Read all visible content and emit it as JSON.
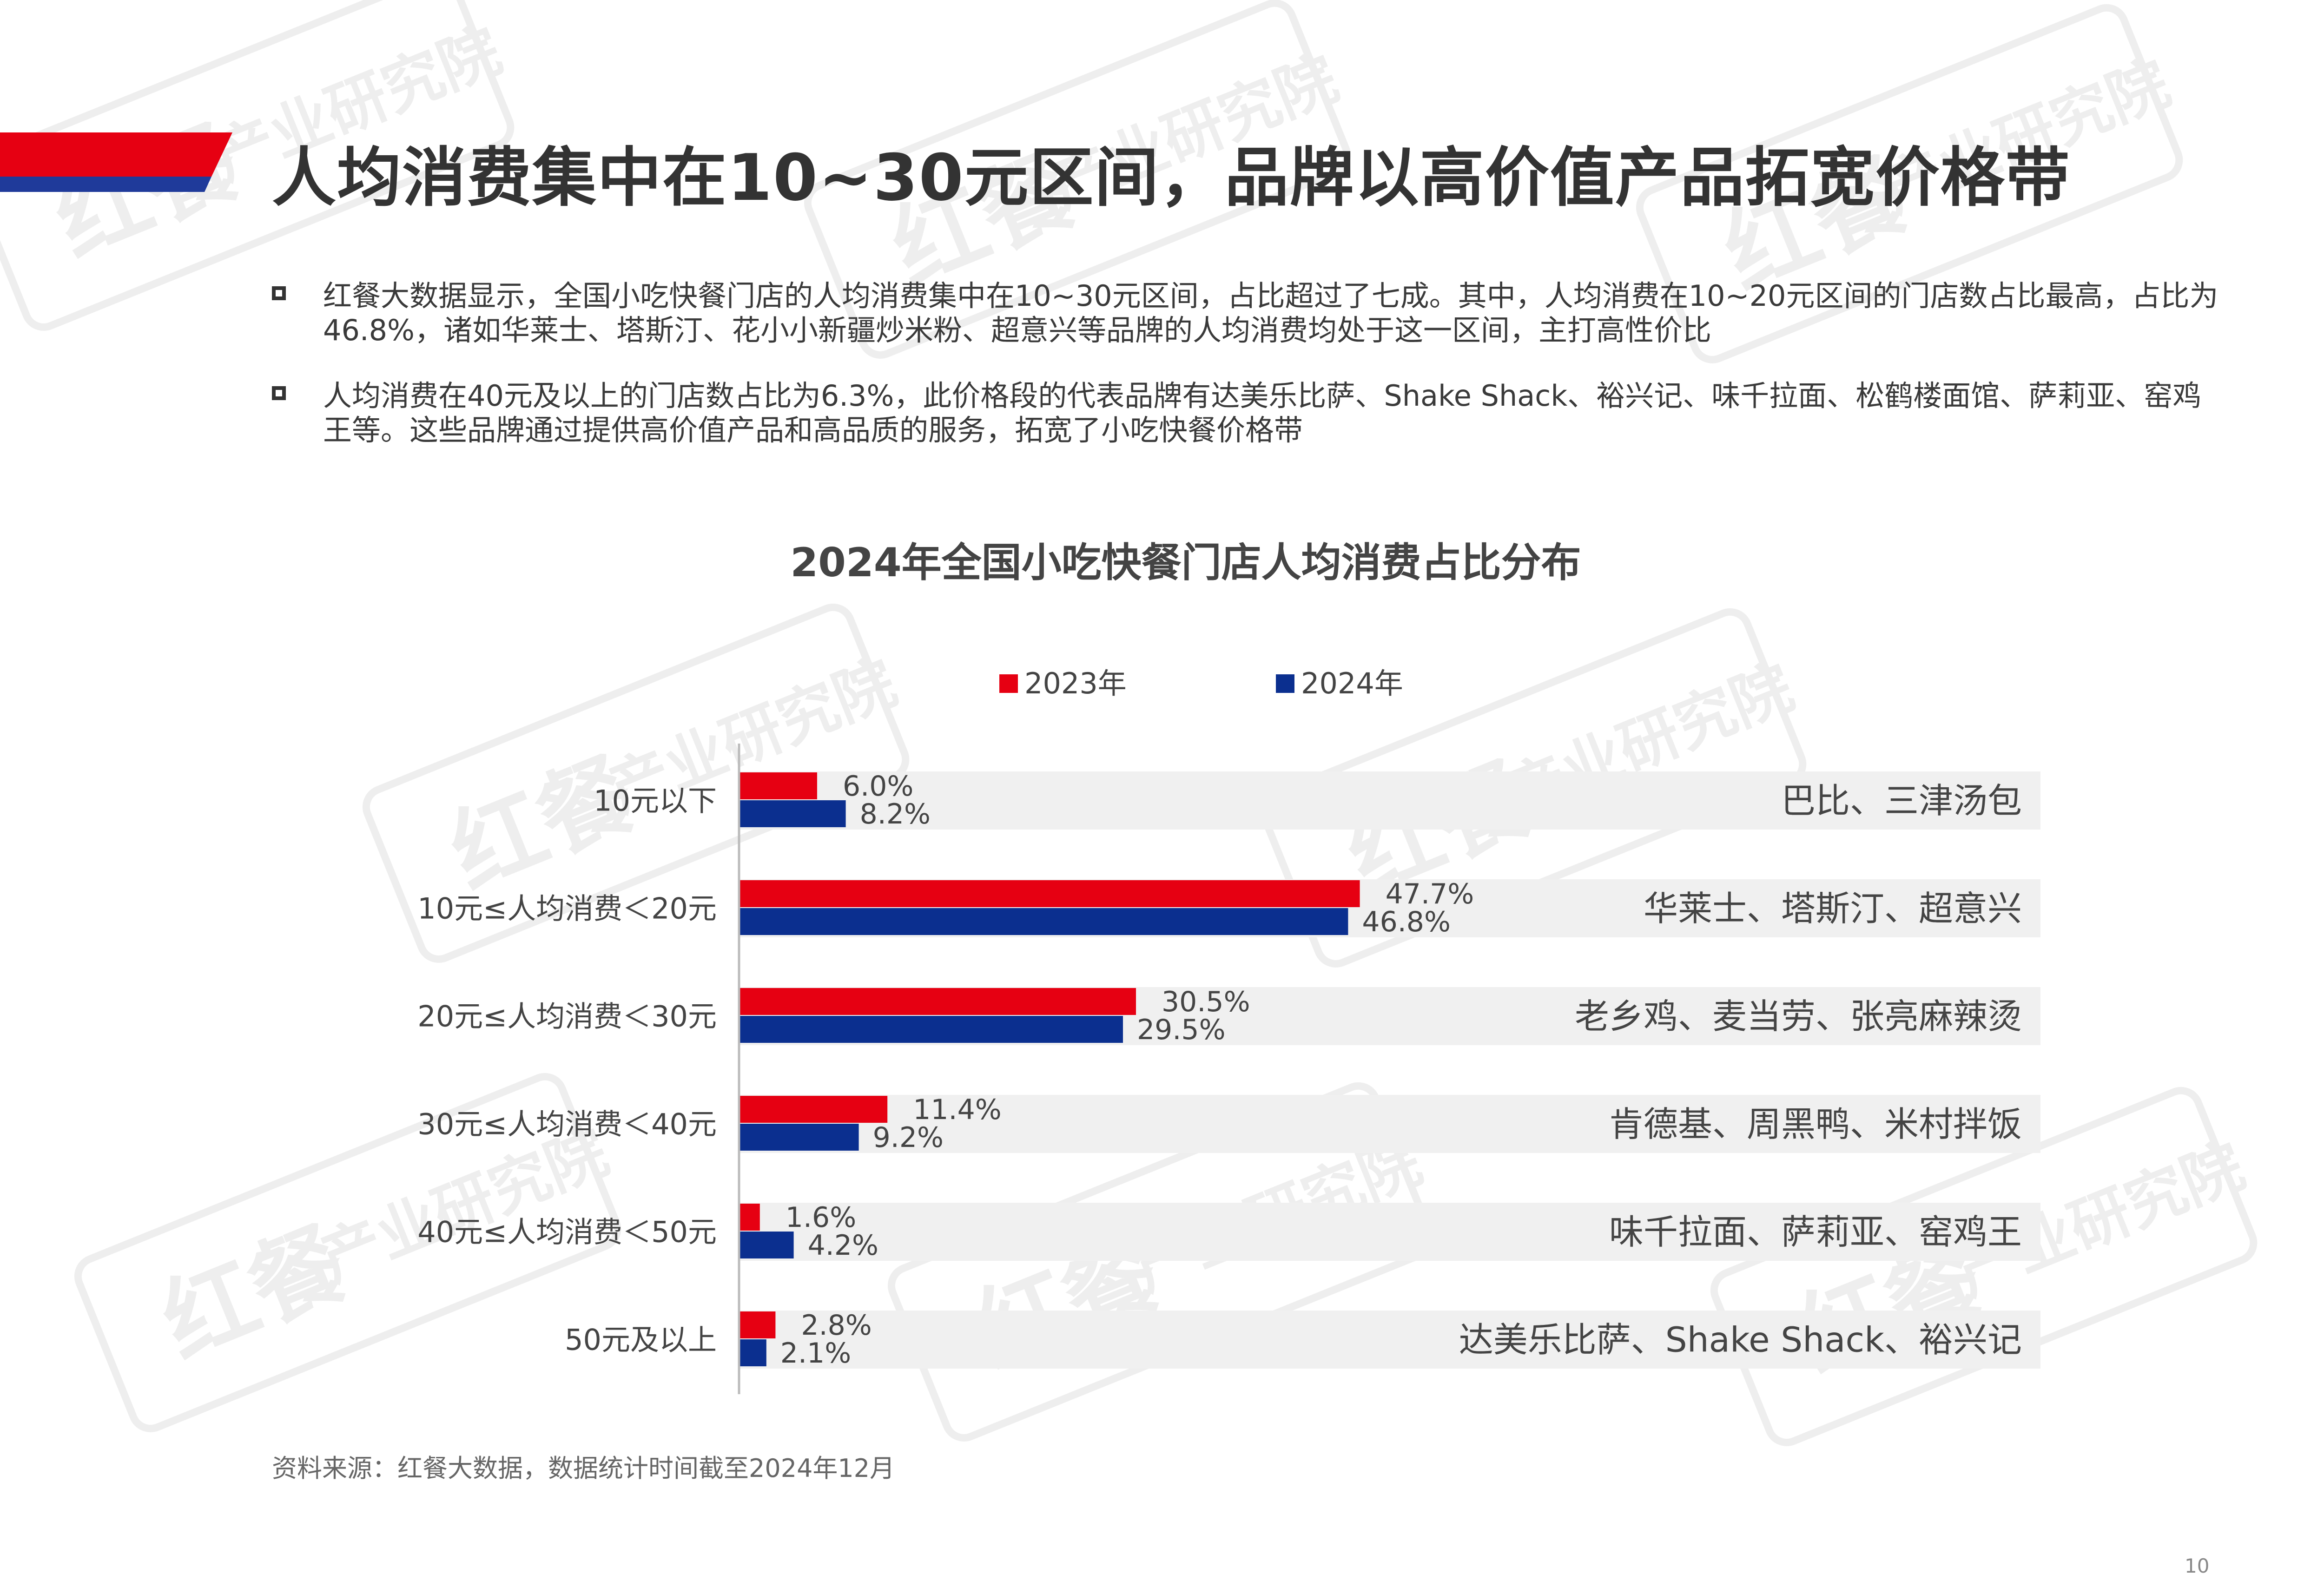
{
  "header": {
    "title": "人均消费集中在10~30元区间，品牌以高价值产品拓宽价格带"
  },
  "bullets": [
    "红餐大数据显示，全国小吃快餐门店的人均消费集中在10~30元区间，占比超过了七成。其中，人均消费在10~20元区间的门店数占比最高，占比为46.8%，诸如华莱士、塔斯汀、花小小新疆炒米粉、超意兴等品牌的人均消费均处于这一区间，主打高性价比",
    "人均消费在40元及以上的门店数占比为6.3%，此价格段的代表品牌有达美乐比萨、Shake Shack、裕兴记、味千拉面、松鹤楼面馆、萨莉亚、窑鸡王等。这些品牌通过提供高价值产品和高品质的服务，拓宽了小吃快餐价格带"
  ],
  "watermark": {
    "brand": "红餐",
    "institute": "产业研究院"
  },
  "chart_data": {
    "type": "bar",
    "orientation": "horizontal",
    "title": "2024年全国小吃快餐门店人均消费占比分布",
    "categories": [
      "10元以下",
      "10元≤人均消费＜20元",
      "20元≤人均消费＜30元",
      "30元≤人均消费＜40元",
      "40元≤人均消费＜50元",
      "50元及以上"
    ],
    "series": [
      {
        "name": "2023年",
        "values": [
          6.0,
          47.7,
          30.5,
          11.4,
          1.6,
          2.8
        ],
        "labels": [
          "6.0%",
          "47.7%",
          "30.5%",
          "11.4%",
          "1.6%",
          "2.8%"
        ],
        "color": "#e60012"
      },
      {
        "name": "2024年",
        "values": [
          8.2,
          46.8,
          29.5,
          9.2,
          4.2,
          2.1
        ],
        "labels": [
          "8.2%",
          "46.8%",
          "29.5%",
          "9.2%",
          "4.2%",
          "2.1%"
        ],
        "color": "#0b2f8f"
      }
    ],
    "brands": [
      "巴比、三津汤包",
      "华莱士、塔斯汀、超意兴",
      "老乡鸡、麦当劳、张亮麻辣烫",
      "肯德基、周黑鸭、米村拌饭",
      "味千拉面、萨莉亚、窑鸡王",
      "达美乐比萨、Shake Shack、裕兴记"
    ],
    "unit": "%",
    "xlim": [
      0,
      100
    ],
    "legend_position": "top",
    "grid": false
  },
  "footer": {
    "source": "资料来源：红餐大数据，数据统计时间截至2024年12月",
    "page_number": "10"
  },
  "colors": {
    "accent_red": "#e60012",
    "accent_blue": "#0b2f8f",
    "row_band": "#f0f0f0"
  }
}
